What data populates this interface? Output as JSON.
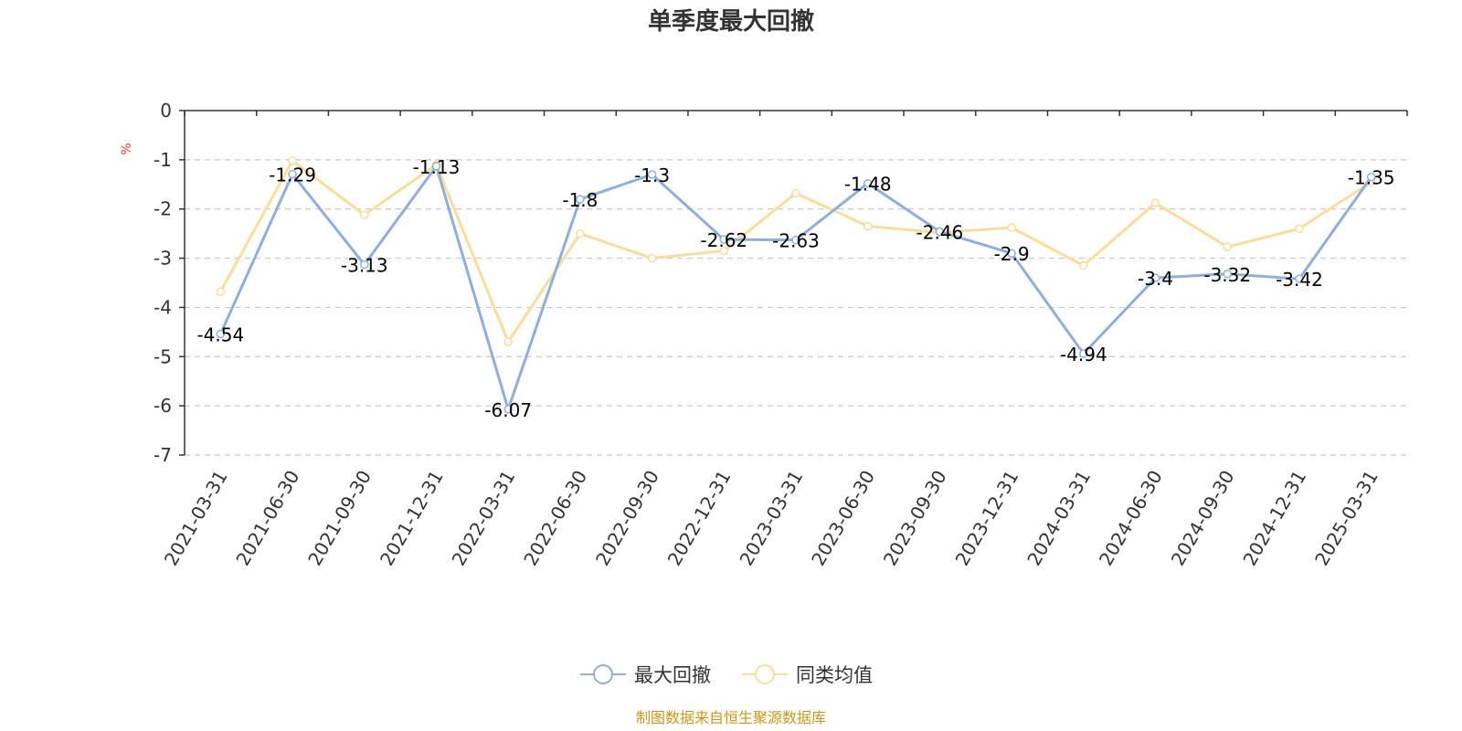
{
  "chart_data": {
    "type": "line",
    "title": "单季度最大回撤",
    "ylabel": "%",
    "ylim": [
      -7,
      0
    ],
    "yticks": [
      "0",
      "-1",
      "-2",
      "-3",
      "-4",
      "-5",
      "-6",
      "-7"
    ],
    "grid": true,
    "legend_position": "bottom",
    "categories": [
      "2021-03-31",
      "2021-06-30",
      "2021-09-30",
      "2021-12-31",
      "2022-03-31",
      "2022-06-30",
      "2022-09-30",
      "2022-12-31",
      "2023-03-31",
      "2023-06-30",
      "2023-09-30",
      "2023-12-31",
      "2024-03-31",
      "2024-06-30",
      "2024-09-30",
      "2024-12-31",
      "2025-03-31"
    ],
    "series": [
      {
        "name": "最大回撤",
        "color": "#8eaedb",
        "show_labels": true,
        "values": [
          -4.54,
          -1.29,
          -3.13,
          -1.13,
          -6.07,
          -1.8,
          -1.3,
          -2.62,
          -2.63,
          -1.48,
          -2.46,
          -2.9,
          -4.94,
          -3.4,
          -3.32,
          -3.42,
          -1.35
        ],
        "labels": [
          "-4.54",
          "-1.29",
          "-3.13",
          "-1.13",
          "-6.07",
          "-1.8",
          "-1.3",
          "-2.62",
          "-2.63",
          "-1.48",
          "-2.46",
          "-2.9",
          "-4.94",
          "-3.4",
          "-3.32",
          "-3.42",
          "-1.35"
        ]
      },
      {
        "name": "同类均值",
        "color": "#fcdc9c",
        "show_labels": false,
        "values": [
          -3.68,
          -1.02,
          -2.12,
          -1.1,
          -4.7,
          -2.5,
          -3.0,
          -2.85,
          -1.68,
          -2.35,
          -2.48,
          -2.38,
          -3.15,
          -1.88,
          -2.77,
          -2.4,
          -1.45
        ]
      }
    ],
    "source_note": "制图数据来自恒生聚源数据库"
  }
}
